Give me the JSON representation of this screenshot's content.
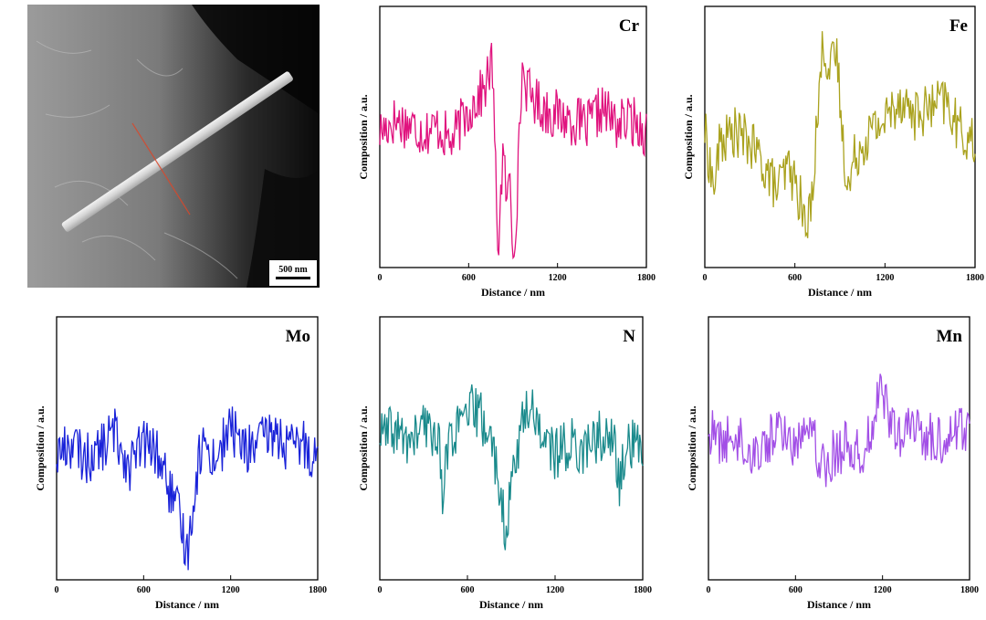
{
  "micrograph": {
    "scale_bar_label": "500 nm"
  },
  "colors": {
    "Cr": "#e0137e",
    "Fe": "#aaa21e",
    "Mo": "#1a23d9",
    "N": "#1a8a8c",
    "Mn": "#a24fe6"
  },
  "chart_data": [
    {
      "type": "line",
      "title": "Cr",
      "xlabel": "Distance / nm",
      "ylabel": "Composition / a.u.",
      "xlim": [
        0,
        1800
      ],
      "xticks": [
        "0",
        "600",
        "1200",
        "1800"
      ],
      "color": "#e0137e",
      "points": [
        [
          0,
          0.55
        ],
        [
          100,
          0.6
        ],
        [
          200,
          0.58
        ],
        [
          300,
          0.55
        ],
        [
          400,
          0.57
        ],
        [
          480,
          0.5
        ],
        [
          560,
          0.6
        ],
        [
          640,
          0.68
        ],
        [
          700,
          0.72
        ],
        [
          760,
          0.85
        ],
        [
          780,
          0.4
        ],
        [
          800,
          0.05
        ],
        [
          830,
          0.45
        ],
        [
          860,
          0.25
        ],
        [
          880,
          0.35
        ],
        [
          900,
          0.03
        ],
        [
          930,
          0.3
        ],
        [
          960,
          0.82
        ],
        [
          1000,
          0.72
        ],
        [
          1100,
          0.65
        ],
        [
          1200,
          0.62
        ],
        [
          1300,
          0.6
        ],
        [
          1400,
          0.57
        ],
        [
          1500,
          0.65
        ],
        [
          1600,
          0.58
        ],
        [
          1700,
          0.6
        ],
        [
          1800,
          0.55
        ]
      ]
    },
    {
      "type": "line",
      "title": "Fe",
      "xlabel": "Distance / nm",
      "ylabel": "Composition / a.u.",
      "xlim": [
        0,
        1800
      ],
      "xticks": [
        "0",
        "600",
        "1200",
        "1800"
      ],
      "color": "#aaa21e",
      "points": [
        [
          0,
          0.55
        ],
        [
          60,
          0.3
        ],
        [
          100,
          0.5
        ],
        [
          200,
          0.55
        ],
        [
          300,
          0.5
        ],
        [
          400,
          0.4
        ],
        [
          480,
          0.3
        ],
        [
          560,
          0.4
        ],
        [
          640,
          0.25
        ],
        [
          680,
          0.1
        ],
        [
          720,
          0.35
        ],
        [
          760,
          0.7
        ],
        [
          790,
          0.95
        ],
        [
          830,
          0.8
        ],
        [
          880,
          0.88
        ],
        [
          920,
          0.5
        ],
        [
          960,
          0.3
        ],
        [
          1000,
          0.45
        ],
        [
          1100,
          0.55
        ],
        [
          1200,
          0.6
        ],
        [
          1300,
          0.7
        ],
        [
          1400,
          0.62
        ],
        [
          1500,
          0.65
        ],
        [
          1600,
          0.68
        ],
        [
          1700,
          0.55
        ],
        [
          1800,
          0.5
        ]
      ]
    },
    {
      "type": "line",
      "title": "Mo",
      "xlabel": "Distance / nm",
      "ylabel": "Composition / a.u.",
      "xlim": [
        0,
        1800
      ],
      "xticks": [
        "0",
        "600",
        "1200",
        "1800"
      ],
      "color": "#1a23d9",
      "points": [
        [
          0,
          0.5
        ],
        [
          100,
          0.55
        ],
        [
          200,
          0.48
        ],
        [
          300,
          0.52
        ],
        [
          400,
          0.6
        ],
        [
          500,
          0.45
        ],
        [
          600,
          0.55
        ],
        [
          700,
          0.5
        ],
        [
          780,
          0.35
        ],
        [
          860,
          0.2
        ],
        [
          900,
          0.08
        ],
        [
          960,
          0.4
        ],
        [
          1000,
          0.55
        ],
        [
          1100,
          0.48
        ],
        [
          1200,
          0.62
        ],
        [
          1300,
          0.52
        ],
        [
          1400,
          0.55
        ],
        [
          1500,
          0.6
        ],
        [
          1600,
          0.52
        ],
        [
          1700,
          0.55
        ],
        [
          1800,
          0.48
        ]
      ]
    },
    {
      "type": "line",
      "title": "N",
      "xlabel": "Distance / nm",
      "ylabel": "Composition / a.u.",
      "xlim": [
        0,
        1800
      ],
      "xticks": [
        "0",
        "600",
        "1200",
        "1800"
      ],
      "color": "#1a8a8c",
      "points": [
        [
          0,
          0.58
        ],
        [
          100,
          0.6
        ],
        [
          200,
          0.55
        ],
        [
          300,
          0.62
        ],
        [
          400,
          0.58
        ],
        [
          430,
          0.35
        ],
        [
          480,
          0.58
        ],
        [
          560,
          0.62
        ],
        [
          640,
          0.7
        ],
        [
          700,
          0.65
        ],
        [
          750,
          0.58
        ],
        [
          800,
          0.45
        ],
        [
          840,
          0.3
        ],
        [
          860,
          0.05
        ],
        [
          900,
          0.4
        ],
        [
          960,
          0.58
        ],
        [
          1000,
          0.7
        ],
        [
          1060,
          0.68
        ],
        [
          1100,
          0.6
        ],
        [
          1200,
          0.5
        ],
        [
          1300,
          0.55
        ],
        [
          1400,
          0.52
        ],
        [
          1500,
          0.58
        ],
        [
          1600,
          0.55
        ],
        [
          1640,
          0.38
        ],
        [
          1700,
          0.55
        ],
        [
          1800,
          0.52
        ]
      ]
    },
    {
      "type": "line",
      "title": "Mn",
      "xlabel": "Distance / nm",
      "ylabel": "Composition / a.u.",
      "xlim": [
        0,
        1800
      ],
      "xticks": [
        "0",
        "600",
        "1200",
        "1800"
      ],
      "color": "#a24fe6",
      "points": [
        [
          0,
          0.6
        ],
        [
          100,
          0.55
        ],
        [
          200,
          0.58
        ],
        [
          300,
          0.5
        ],
        [
          400,
          0.55
        ],
        [
          500,
          0.62
        ],
        [
          600,
          0.52
        ],
        [
          680,
          0.7
        ],
        [
          780,
          0.45
        ],
        [
          860,
          0.5
        ],
        [
          960,
          0.55
        ],
        [
          1050,
          0.48
        ],
        [
          1200,
          0.78
        ],
        [
          1300,
          0.55
        ],
        [
          1400,
          0.62
        ],
        [
          1500,
          0.58
        ],
        [
          1600,
          0.55
        ],
        [
          1700,
          0.62
        ],
        [
          1800,
          0.6
        ]
      ]
    }
  ]
}
